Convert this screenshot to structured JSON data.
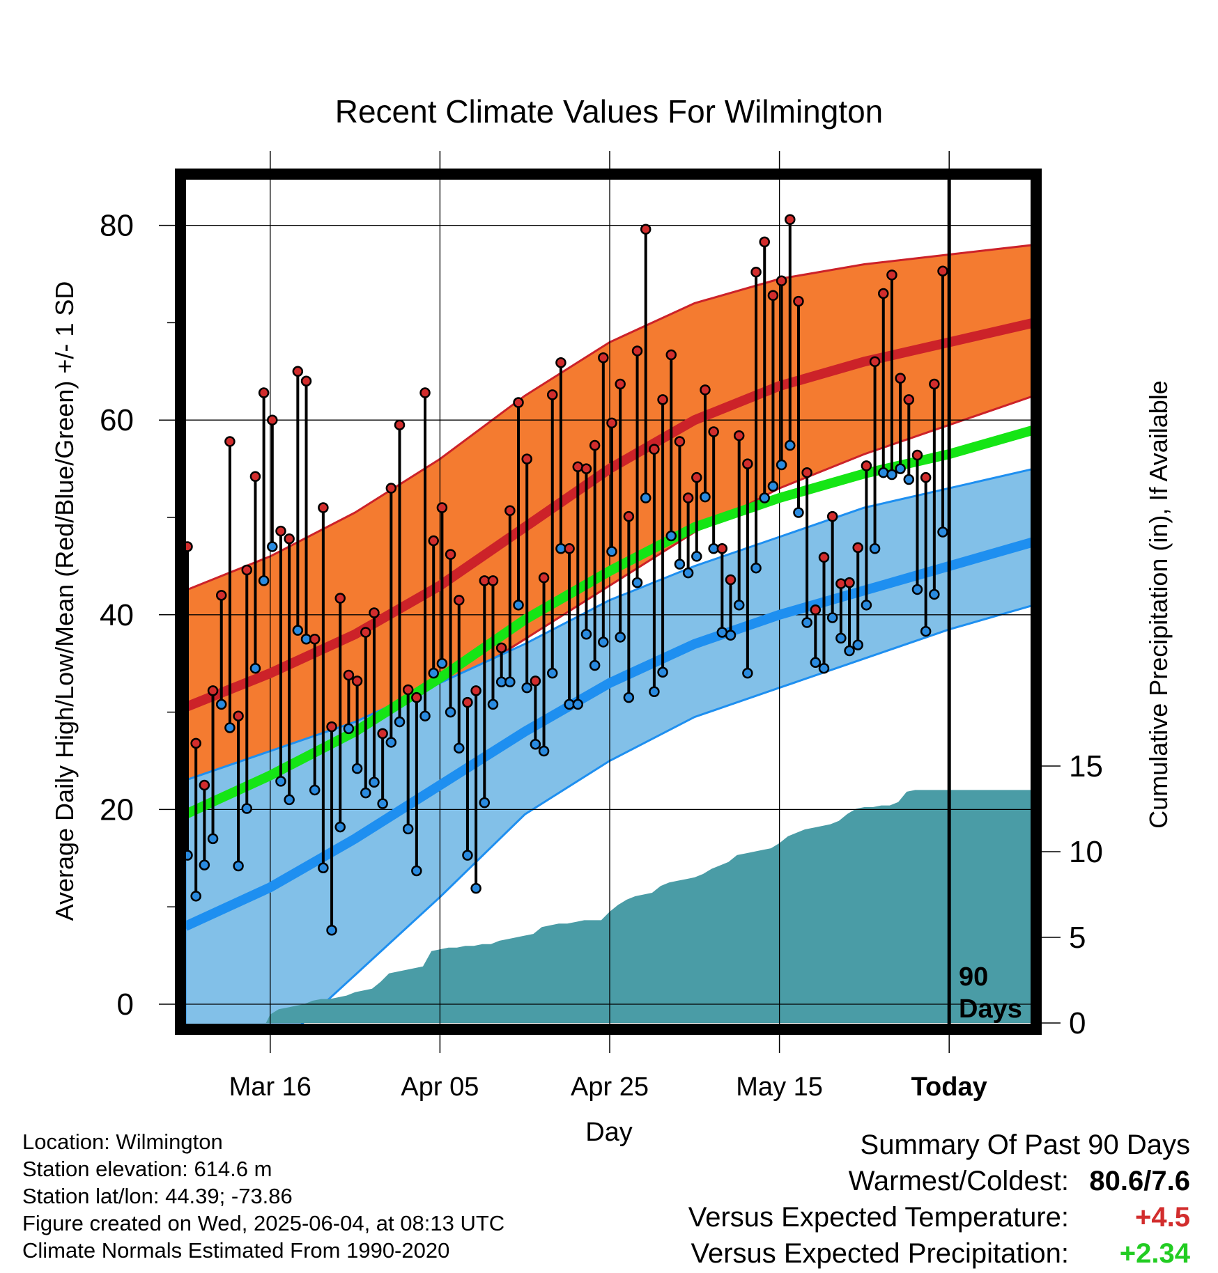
{
  "chart_data": {
    "type": "line",
    "title": "Recent Climate Values For Wilmington",
    "xlabel": "Day",
    "ylabel": "Average Daily High/Low/Mean (Red/Blue/Green) +/- 1 SD",
    "y2label": "Cumulative Precipitation (in), If Available",
    "ylim": [
      -3,
      86
    ],
    "y2lim": [
      0,
      25
    ],
    "yticks": [
      0,
      20,
      40,
      60,
      80
    ],
    "y2ticks": [
      0,
      5,
      10,
      15
    ],
    "x_tick_labels": [
      "Mar 16",
      "Apr 05",
      "Apr 25",
      "May 15",
      "Today"
    ],
    "x_tick_days": [
      10,
      30,
      50,
      70,
      90
    ],
    "today_marker_label": [
      "90",
      "Days"
    ],
    "grid": true,
    "colors": {
      "high_band": "#f47b30",
      "high_mean": "#cc2229",
      "low_band": "#82c0e8",
      "low_mean": "#1e8ff0",
      "mean": "#15e515",
      "precip": "#4a9ca6",
      "high_dot": "#d22d2d",
      "low_dot": "#2a8be0"
    },
    "normals": {
      "x": [
        0,
        10,
        20,
        30,
        40,
        50,
        60,
        70,
        80,
        90,
        100
      ],
      "high_mean": [
        30.5,
        34.0,
        38.0,
        43.0,
        49.0,
        55.0,
        60.0,
        63.5,
        66.0,
        68.0,
        70.0
      ],
      "high_upper": [
        42.5,
        46.0,
        50.5,
        56.0,
        62.5,
        68.0,
        72.0,
        74.5,
        76.0,
        77.0,
        78.0
      ],
      "high_lower": [
        21.0,
        24.0,
        27.5,
        32.0,
        37.5,
        43.0,
        48.5,
        53.0,
        56.5,
        59.5,
        62.5
      ],
      "low_mean": [
        8.0,
        12.0,
        17.0,
        22.5,
        28.0,
        33.0,
        37.0,
        40.0,
        42.5,
        45.0,
        47.5
      ],
      "low_upper": [
        23.0,
        26.0,
        29.0,
        33.0,
        37.0,
        41.5,
        45.0,
        48.0,
        51.0,
        53.0,
        55.0
      ],
      "low_lower": [
        -12.0,
        -5.0,
        3.0,
        11.0,
        19.5,
        25.0,
        29.5,
        32.5,
        35.5,
        38.5,
        41.0
      ],
      "mean": [
        19.5,
        23.5,
        28.0,
        33.5,
        39.5,
        44.5,
        49.0,
        52.0,
        54.5,
        56.5,
        59.0
      ]
    },
    "daily_x": [
      0,
      1,
      2,
      3,
      4,
      5,
      6,
      7,
      8,
      9,
      10,
      11,
      12,
      13,
      14,
      15,
      16,
      17,
      18,
      19,
      20,
      21,
      22,
      23,
      24,
      25,
      26,
      27,
      28,
      29,
      30,
      31,
      32,
      33,
      34,
      35,
      36,
      37,
      38,
      39,
      40,
      41,
      42,
      43,
      44,
      45,
      46,
      47,
      48,
      49,
      50,
      51,
      52,
      53,
      54,
      55,
      56,
      57,
      58,
      59,
      60,
      61,
      62,
      63,
      64,
      65,
      66,
      67,
      68,
      69,
      70,
      71,
      72,
      73,
      74,
      75,
      76,
      77,
      78,
      79,
      80,
      81,
      82,
      83,
      84,
      85,
      86,
      87,
      88,
      89
    ],
    "daily_high": [
      47.0,
      26.8,
      22.5,
      32.2,
      42.0,
      57.8,
      29.6,
      44.6,
      54.2,
      62.8,
      60.0,
      48.6,
      47.8,
      65.0,
      64.0,
      37.5,
      51.0,
      28.5,
      41.7,
      33.8,
      33.2,
      38.2,
      40.2,
      27.8,
      53.0,
      59.5,
      32.3,
      31.5,
      62.8,
      47.6,
      51.0,
      46.2,
      41.5,
      31.0,
      32.2,
      43.5,
      43.5,
      36.6,
      50.7,
      61.8,
      56.0,
      33.2,
      43.8,
      62.6,
      65.9,
      46.8,
      55.2,
      55.0,
      57.4,
      66.4,
      59.7,
      63.7,
      50.1,
      67.1,
      79.6,
      57.0,
      62.1,
      66.7,
      57.8,
      52.0,
      54.1,
      63.1,
      58.8,
      46.8,
      43.6,
      58.4,
      55.5,
      75.2,
      78.3,
      72.8,
      74.3,
      80.6,
      72.2,
      54.6,
      40.5,
      45.9,
      50.1,
      43.2,
      43.3,
      46.9,
      55.3,
      66.0,
      73.0,
      74.9,
      64.3,
      62.1,
      56.4,
      54.1,
      63.7,
      75.3
    ],
    "daily_low": [
      15.3,
      11.1,
      14.3,
      17.0,
      30.8,
      28.4,
      14.2,
      20.1,
      34.5,
      43.5,
      47.0,
      22.9,
      21.0,
      38.4,
      37.5,
      22.0,
      14.0,
      7.6,
      18.2,
      28.3,
      24.2,
      21.7,
      22.8,
      20.6,
      26.9,
      29.0,
      18.0,
      13.7,
      29.6,
      34.0,
      35.0,
      30.0,
      26.3,
      15.3,
      11.9,
      20.7,
      30.8,
      33.1,
      33.1,
      41.0,
      32.5,
      26.7,
      26.0,
      34.0,
      46.8,
      30.8,
      30.8,
      38.0,
      34.8,
      37.2,
      46.5,
      37.7,
      31.5,
      43.3,
      52.0,
      32.1,
      34.1,
      48.1,
      45.2,
      44.3,
      46.0,
      52.1,
      46.8,
      38.2,
      37.9,
      41.0,
      34.0,
      44.8,
      52.0,
      53.2,
      55.4,
      57.4,
      50.5,
      39.2,
      35.1,
      34.5,
      39.7,
      37.6,
      36.3,
      36.9,
      41.0,
      46.8,
      54.6,
      54.4,
      55.0,
      53.9,
      42.6,
      38.3,
      42.1,
      48.5
    ],
    "precip_cumulative": {
      "x": [
        0,
        9.5,
        10,
        11,
        12,
        13,
        14,
        15,
        16,
        17,
        18,
        19,
        20,
        21,
        22,
        23,
        24,
        25,
        26,
        27,
        28,
        29,
        30,
        31,
        32,
        33,
        34,
        35,
        36,
        37,
        38,
        39,
        40,
        41,
        42,
        43,
        44,
        45,
        46,
        47,
        48,
        49,
        50,
        51,
        52,
        53,
        54,
        55,
        56,
        57,
        58,
        59,
        60,
        61,
        62,
        63,
        64,
        65,
        66,
        67,
        68,
        69,
        70,
        71,
        72,
        73,
        74,
        75,
        76,
        77,
        78,
        79,
        80,
        81,
        82,
        83,
        84,
        85,
        86,
        87,
        88,
        89,
        90,
        91,
        92,
        93,
        94,
        95,
        96,
        97,
        98,
        99,
        100,
        100.7
      ],
      "y": [
        0,
        0,
        0.5,
        0.8,
        0.9,
        1.0,
        1.1,
        1.3,
        1.4,
        1.4,
        1.5,
        1.6,
        1.8,
        1.9,
        2.0,
        2.4,
        2.9,
        3.0,
        3.1,
        3.2,
        3.3,
        4.2,
        4.3,
        4.4,
        4.4,
        4.5,
        4.5,
        4.6,
        4.6,
        4.8,
        4.9,
        5.0,
        5.1,
        5.2,
        5.6,
        5.7,
        5.8,
        5.8,
        5.9,
        6.0,
        6.0,
        6.0,
        6.5,
        6.9,
        7.2,
        7.4,
        7.5,
        7.6,
        8.0,
        8.2,
        8.3,
        8.4,
        8.5,
        8.7,
        9.0,
        9.2,
        9.4,
        9.8,
        9.9,
        10.0,
        10.1,
        10.2,
        10.5,
        10.9,
        11.1,
        11.3,
        11.4,
        11.5,
        11.6,
        11.8,
        12.2,
        12.5,
        12.6,
        12.6,
        12.7,
        12.7,
        12.9,
        13.5,
        13.6,
        13.6,
        13.6,
        13.6,
        13.6,
        13.6,
        13.6,
        13.6,
        13.6,
        13.6,
        13.6,
        13.6,
        13.6,
        13.6,
        13.6,
        13.6
      ]
    }
  },
  "footer": {
    "location": "Location: Wilmington",
    "elevation": "Station elevation: 614.6 m",
    "latlon": "Station lat/lon: 44.39; -73.86",
    "created": "Figure created on Wed, 2025-06-04, at 08:13 UTC",
    "normals": "Climate Normals Estimated From 1990-2020"
  },
  "summary": {
    "heading": "Summary Of Past 90 Days",
    "warmest_label": "Warmest/Coldest:",
    "warmest_value": "80.6/7.6",
    "temp_label": "Versus Expected Temperature:",
    "temp_value": "+4.5",
    "temp_color": "#d22d2d",
    "precip_label": "Versus Expected Precipitation:",
    "precip_value": "+2.34",
    "precip_color": "#22cc22"
  }
}
